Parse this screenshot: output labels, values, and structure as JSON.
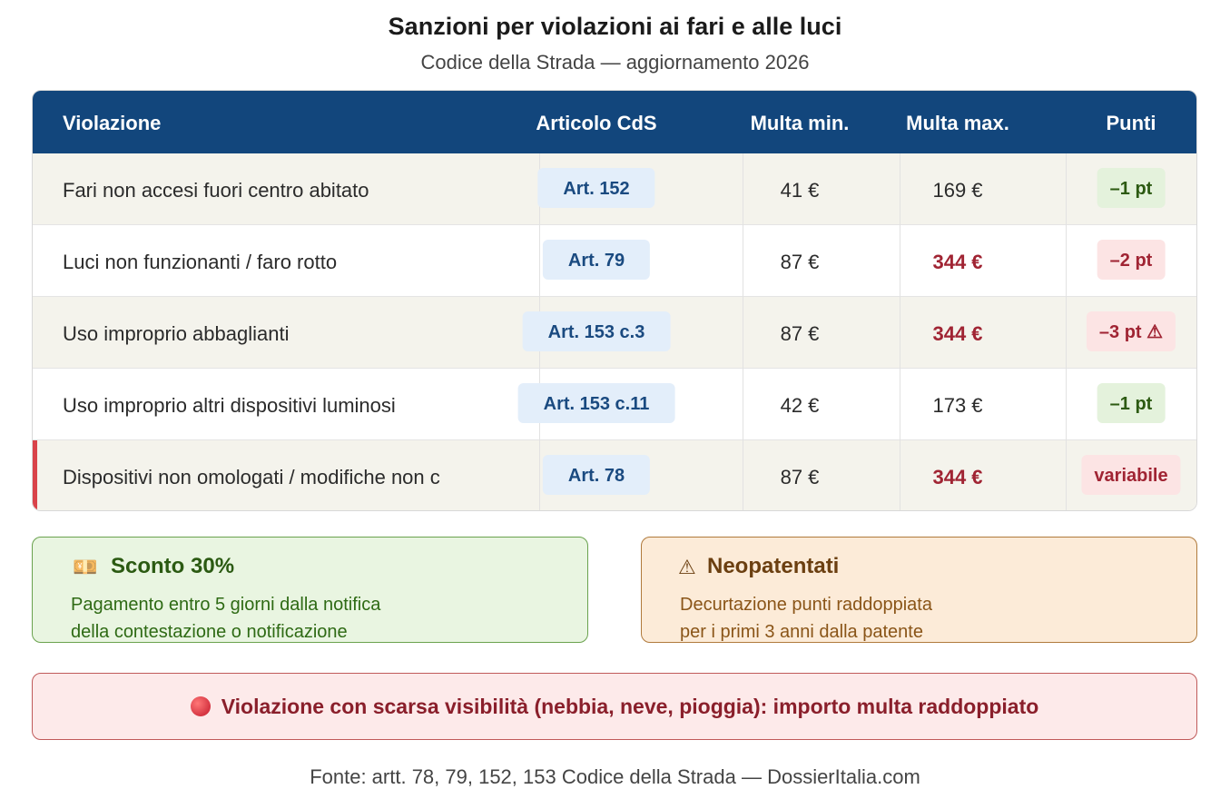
{
  "header": {
    "title": "Sanzioni per violazioni ai fari e alle luci",
    "subtitle": "Codice della Strada — aggiornamento 2026"
  },
  "table": {
    "columns": [
      "Violazione",
      "Articolo CdS",
      "Multa min.",
      "Multa max.",
      "Punti"
    ],
    "rows": [
      [
        "Fari non accesi fuori centro abitato",
        "Art. 152",
        "41 €",
        "169 €",
        "–1 pt"
      ],
      [
        "Luci non funzionanti / faro rotto",
        "Art. 79",
        "87 €",
        "344 €",
        "–2 pt"
      ],
      [
        "Uso improprio abbaglianti",
        "Art. 153 c.3",
        "87 €",
        "344 €",
        "–3 pt ⚠"
      ],
      [
        "Uso improprio altri dispositivi luminosi",
        "Art. 153 c.11",
        "42 €",
        "173 €",
        "–1 pt"
      ],
      [
        "Dispositivi non omologati / modifiche non c",
        "Art. 78",
        "87 €",
        "344 €",
        "variabile"
      ]
    ]
  },
  "notes": [
    {
      "title": "Sconto 30%",
      "lines": [
        "Pagamento entro 5 giorni dalla notifica",
        "della contestazione o notificazione"
      ]
    },
    {
      "title": "Neopatentati",
      "lines": [
        "Decurtazione punti raddoppiata",
        "per i primi 3 anni dalla patente"
      ]
    }
  ],
  "alert": "Violazione con scarsa visibilità (nebbia, neve, pioggia): importo multa raddoppiato",
  "footer": "Fonte: artt. 78, 79, 152, 153 Codice della Strada — DossierItalia.com"
}
